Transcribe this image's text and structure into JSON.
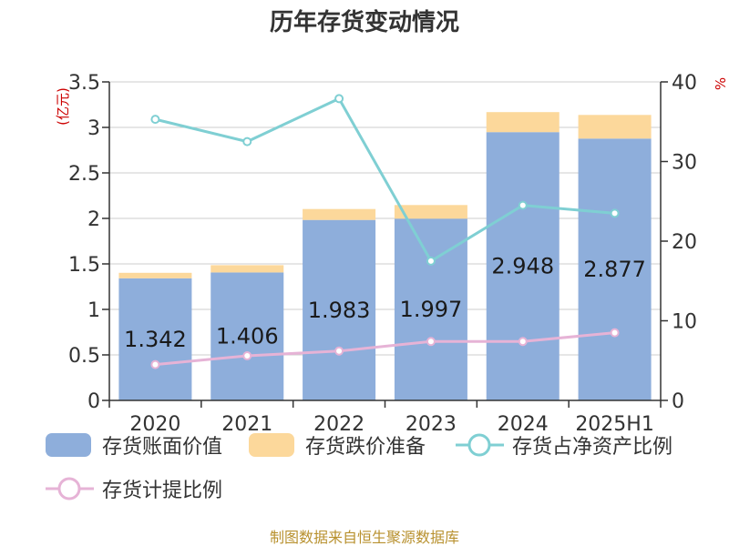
{
  "chart_data": {
    "type": "bar",
    "title": "历年存货变动情况",
    "categories": [
      "2020",
      "2021",
      "2022",
      "2023",
      "2024",
      "2025H1"
    ],
    "y_left": {
      "unit": "(亿元)",
      "range": [
        0,
        3.5
      ],
      "ticks": [
        "0",
        "0.5",
        "1",
        "1.5",
        "2",
        "2.5",
        "3",
        "3.5"
      ]
    },
    "y_right": {
      "unit": "%",
      "range": [
        0,
        40
      ],
      "ticks": [
        "0",
        "10",
        "20",
        "30",
        "40"
      ]
    },
    "series": [
      {
        "name": "存货账面价值",
        "kind": "bar",
        "axis": "left",
        "color": "#8eaedb",
        "values": [
          1.342,
          1.406,
          1.983,
          1.997,
          2.948,
          2.877
        ],
        "labels": [
          "1.342",
          "1.406",
          "1.983",
          "1.997",
          "2.948",
          "2.877"
        ]
      },
      {
        "name": "存货跌价准备",
        "kind": "bar-stacked",
        "axis": "left",
        "color": "#fcd89b",
        "values": [
          0.06,
          0.08,
          0.12,
          0.15,
          0.22,
          0.26
        ]
      },
      {
        "name": "存货占净资产比例",
        "kind": "line",
        "axis": "right",
        "color": "#7fcfd3",
        "values": [
          35.3,
          32.5,
          37.9,
          17.5,
          24.5,
          23.5
        ]
      },
      {
        "name": "存货计提比例",
        "kind": "line",
        "axis": "right",
        "color": "#e6b3d6",
        "values": [
          4.5,
          5.6,
          6.2,
          7.4,
          7.4,
          8.5
        ]
      }
    ],
    "grid": true,
    "legend": "bottom",
    "source": "制图数据来自恒生聚源数据库"
  }
}
